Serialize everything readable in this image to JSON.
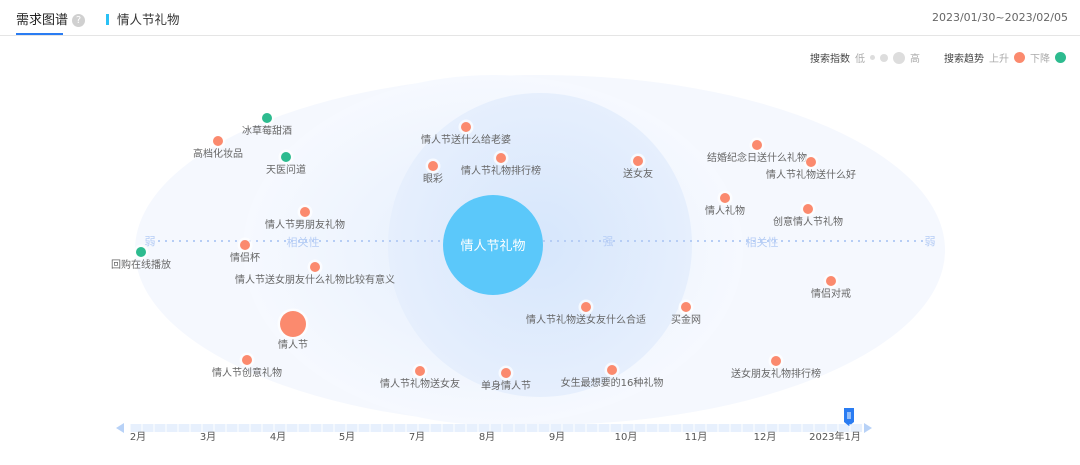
{
  "header": {
    "tab_title": "需求图谱",
    "help_icon": "question-circle-icon",
    "keyword": "情人节礼物",
    "date_range": "2023/01/30~2023/02/05"
  },
  "legend": {
    "index_label": "搜索指数",
    "low": "低",
    "high": "高",
    "trend_label": "搜索趋势",
    "up": "上升",
    "down": "下降"
  },
  "colors": {
    "up": "#fb8a6e",
    "down": "#2dbb8f",
    "center": "#5bc8fa",
    "accent": "#2a7cf2"
  },
  "center": {
    "label": "情人节礼物"
  },
  "axis": {
    "weak_left": "弱",
    "relevance_left": "相关性",
    "strong": "强",
    "relevance_right": "相关性",
    "weak_right": "弱"
  },
  "nodes": [
    {
      "label": "冰草莓甜酒",
      "trend": "down"
    },
    {
      "label": "高档化妆品",
      "trend": "up"
    },
    {
      "label": "天医问道",
      "trend": "down"
    },
    {
      "label": "情人节送什么给老婆",
      "trend": "up"
    },
    {
      "label": "眼彩",
      "trend": "up"
    },
    {
      "label": "情人节礼物排行榜",
      "trend": "up"
    },
    {
      "label": "送女友",
      "trend": "up"
    },
    {
      "label": "结婚纪念日送什么礼物",
      "trend": "up"
    },
    {
      "label": "情人节礼物送什么好",
      "trend": "up"
    },
    {
      "label": "情人礼物",
      "trend": "up"
    },
    {
      "label": "创意情人节礼物",
      "trend": "up"
    },
    {
      "label": "情人节男朋友礼物",
      "trend": "up"
    },
    {
      "label": "回购在线播放",
      "trend": "down"
    },
    {
      "label": "情侣杯",
      "trend": "up"
    },
    {
      "label": "情人节送女朋友什么礼物比较有意义",
      "trend": "up"
    },
    {
      "label": "情侣对戒",
      "trend": "up"
    },
    {
      "label": "情人节礼物送女友什么合适",
      "trend": "up"
    },
    {
      "label": "买金网",
      "trend": "up"
    },
    {
      "label": "情人节",
      "trend": "up"
    },
    {
      "label": "情人节创意礼物",
      "trend": "up"
    },
    {
      "label": "情人节礼物送女友",
      "trend": "up"
    },
    {
      "label": "单身情人节",
      "trend": "up"
    },
    {
      "label": "女生最想要的16种礼物",
      "trend": "up"
    },
    {
      "label": "送女朋友礼物排行榜",
      "trend": "up"
    }
  ],
  "timeline": {
    "months": [
      "2月",
      "3月",
      "4月",
      "5月",
      "7月",
      "8月",
      "9月",
      "10月",
      "11月",
      "12月",
      "2023年1月"
    ],
    "selected": "2023年1月"
  }
}
